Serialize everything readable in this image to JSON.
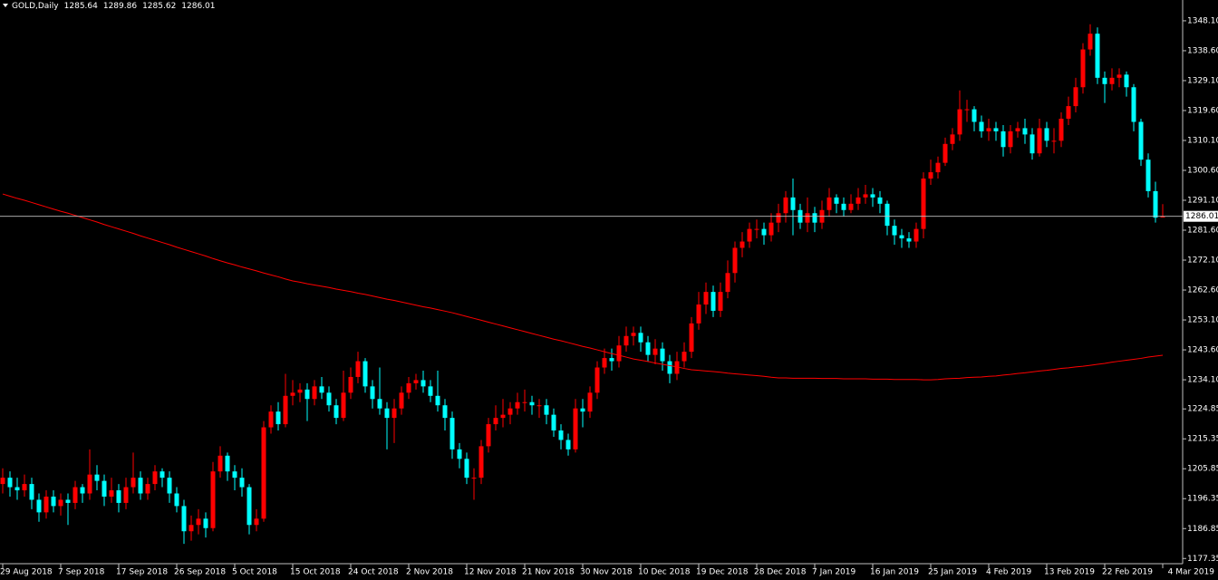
{
  "chart_data": {
    "type": "candlestick",
    "title": "GOLD,Daily",
    "up_color": "#ff0000",
    "down_color": "#00ffff",
    "categories": [
      "29 Aug 2018",
      null,
      null,
      null,
      null,
      null,
      null,
      null,
      "7 Sep 2018",
      null,
      null,
      null,
      null,
      null,
      null,
      null,
      "17 Sep 2018",
      null,
      null,
      null,
      null,
      null,
      null,
      null,
      "26 Sep 2018",
      null,
      null,
      null,
      null,
      null,
      null,
      null,
      "5 Oct 2018",
      null,
      null,
      null,
      null,
      null,
      null,
      null,
      "15 Oct 2018",
      null,
      null,
      null,
      null,
      null,
      null,
      null,
      "24 Oct 2018",
      null,
      null,
      null,
      null,
      null,
      null,
      null,
      "2 Nov 2018",
      null,
      null,
      null,
      null,
      null,
      null,
      null,
      "12 Nov 2018",
      null,
      null,
      null,
      null,
      null,
      null,
      null,
      "21 Nov 2018",
      null,
      null,
      null,
      null,
      null,
      null,
      null,
      "30 Nov 2018",
      null,
      null,
      null,
      null,
      null,
      null,
      null,
      "10 Dec 2018",
      null,
      null,
      null,
      null,
      null,
      null,
      null,
      "19 Dec 2018",
      null,
      null,
      null,
      null,
      null,
      null,
      null,
      "28 Dec 2018",
      null,
      null,
      null,
      null,
      null,
      null,
      null,
      "7 Jan 2019",
      null,
      null,
      null,
      null,
      null,
      null,
      null,
      "16 Jan 2019",
      null,
      null,
      null,
      null,
      null,
      null,
      null,
      "25 Jan 2019",
      null,
      null,
      null,
      null,
      null,
      null,
      null,
      "4 Feb 2019",
      null,
      null,
      null,
      null,
      null,
      null,
      null,
      "13 Feb 2019",
      null,
      null,
      null,
      null,
      null,
      null,
      null,
      "22 Feb 2019",
      null,
      null,
      null,
      null,
      null,
      null,
      null,
      "4 Mar 2019"
    ],
    "open": [
      1201,
      1203,
      1200,
      1199,
      1201,
      1196,
      1192,
      1197,
      1194,
      1196,
      1195,
      1200,
      1198,
      1204,
      1202,
      1197,
      1199,
      1195,
      1200,
      1203,
      1198,
      1201,
      1205,
      1203,
      1198,
      1194,
      1186,
      1188,
      1190,
      1187,
      1205,
      1210,
      1205,
      1203,
      1200,
      1188,
      1190,
      1219,
      1224,
      1220,
      1229,
      1230,
      1231,
      1228,
      1232,
      1230,
      1226,
      1222,
      1230,
      1235,
      1240,
      1232,
      1228,
      1225,
      1222,
      1225,
      1230,
      1233,
      1234,
      1232,
      1229,
      1226,
      1222,
      1212,
      1209,
      1203,
      1203,
      1213,
      1220,
      1222,
      1223,
      1225,
      1227,
      1227,
      1226,
      1226,
      1223,
      1218,
      1215,
      1212,
      1225,
      1224,
      1230,
      1238,
      1241,
      1240,
      1245,
      1248,
      1249,
      1246,
      1242,
      1244,
      1240,
      1236,
      1240,
      1243,
      1252,
      1258,
      1262,
      1256,
      1262,
      1268,
      1276,
      1278,
      1282,
      1282,
      1280,
      1284,
      1287,
      1292,
      1288,
      1284,
      1287,
      1284,
      1288,
      1292,
      1290,
      1288,
      1290,
      1292,
      1293,
      1292,
      1290,
      1283,
      1280,
      1279,
      1278,
      1282,
      1298,
      1300,
      1303,
      1309,
      1312,
      1320,
      1320,
      1316,
      1313,
      1314,
      1313,
      1308,
      1313,
      1314,
      1312,
      1306,
      1314,
      1310,
      1310,
      1317,
      1321,
      1327,
      1339,
      1344,
      1330,
      1328,
      1330,
      1331,
      1327,
      1316,
      1304,
      1294,
      1285.64
    ],
    "high": [
      1206,
      1205,
      1203,
      1204,
      1203,
      1198,
      1199,
      1199,
      1198,
      1198,
      1202,
      1201,
      1212,
      1207,
      1204,
      1203,
      1201,
      1203,
      1211,
      1205,
      1203,
      1207,
      1206,
      1205,
      1200,
      1196,
      1191,
      1193,
      1192,
      1208,
      1213,
      1211,
      1207,
      1206,
      1201,
      1193,
      1221,
      1226,
      1227,
      1236,
      1234,
      1233,
      1233,
      1234,
      1235,
      1232,
      1228,
      1237,
      1238,
      1243,
      1241,
      1234,
      1238,
      1227,
      1228,
      1232,
      1235,
      1236,
      1237,
      1234,
      1237,
      1228,
      1224,
      1214,
      1211,
      1206,
      1215,
      1222,
      1226,
      1228,
      1227,
      1230,
      1231,
      1229,
      1228,
      1228,
      1225,
      1220,
      1217,
      1228,
      1228,
      1232,
      1240,
      1244,
      1244,
      1248,
      1251,
      1251,
      1251,
      1248,
      1247,
      1246,
      1242,
      1243,
      1246,
      1254,
      1262,
      1265,
      1264,
      1265,
      1272,
      1278,
      1281,
      1284,
      1285,
      1284,
      1287,
      1290,
      1294,
      1298,
      1290,
      1292,
      1289,
      1291,
      1295,
      1293,
      1292,
      1293,
      1295,
      1296,
      1295,
      1294,
      1291,
      1285,
      1282,
      1281,
      1284,
      1300,
      1304,
      1305,
      1311,
      1314,
      1326,
      1323,
      1321,
      1318,
      1317,
      1316,
      1315,
      1315,
      1316,
      1317,
      1314,
      1317,
      1316,
      1314,
      1319,
      1324,
      1330,
      1341,
      1347,
      1346,
      1332,
      1333,
      1333,
      1332,
      1328,
      1317,
      1306,
      1297,
      1289.86
    ],
    "low": [
      1198,
      1197,
      1196,
      1197,
      1193,
      1189,
      1190,
      1192,
      1191,
      1188,
      1193,
      1195,
      1196,
      1199,
      1194,
      1195,
      1192,
      1193,
      1198,
      1196,
      1196,
      1199,
      1200,
      1195,
      1192,
      1182,
      1183,
      1185,
      1184,
      1186,
      1203,
      1202,
      1199,
      1197,
      1185,
      1186,
      1189,
      1217,
      1218,
      1219,
      1226,
      1227,
      1221,
      1226,
      1228,
      1224,
      1220,
      1221,
      1228,
      1233,
      1230,
      1225,
      1223,
      1212,
      1214,
      1223,
      1228,
      1231,
      1230,
      1227,
      1224,
      1218,
      1209,
      1206,
      1201,
      1196,
      1201,
      1211,
      1218,
      1219,
      1220,
      1223,
      1224,
      1223,
      1222,
      1220,
      1216,
      1212,
      1210,
      1211,
      1219,
      1222,
      1228,
      1236,
      1237,
      1238,
      1243,
      1245,
      1243,
      1240,
      1239,
      1237,
      1233,
      1234,
      1238,
      1241,
      1250,
      1255,
      1254,
      1254,
      1260,
      1265,
      1273,
      1276,
      1279,
      1277,
      1278,
      1281,
      1284,
      1280,
      1282,
      1281,
      1281,
      1282,
      1286,
      1287,
      1286,
      1287,
      1288,
      1290,
      1289,
      1287,
      1280,
      1277,
      1276,
      1276,
      1276,
      1279,
      1296,
      1298,
      1302,
      1307,
      1310,
      1316,
      1313,
      1311,
      1310,
      1310,
      1305,
      1306,
      1311,
      1309,
      1304,
      1305,
      1308,
      1306,
      1308,
      1315,
      1319,
      1325,
      1337,
      1328,
      1322,
      1326,
      1327,
      1324,
      1313,
      1302,
      1292,
      1284,
      1285.62
    ],
    "close": [
      1203,
      1200,
      1199,
      1201,
      1196,
      1192,
      1197,
      1194,
      1196,
      1195,
      1200,
      1198,
      1204,
      1202,
      1197,
      1199,
      1195,
      1200,
      1203,
      1198,
      1201,
      1205,
      1203,
      1198,
      1194,
      1186,
      1188,
      1190,
      1187,
      1205,
      1210,
      1205,
      1203,
      1200,
      1188,
      1190,
      1219,
      1224,
      1220,
      1229,
      1230,
      1231,
      1228,
      1232,
      1230,
      1226,
      1222,
      1230,
      1235,
      1240,
      1232,
      1228,
      1225,
      1222,
      1225,
      1230,
      1233,
      1234,
      1232,
      1229,
      1226,
      1222,
      1212,
      1209,
      1203,
      1203,
      1213,
      1220,
      1222,
      1223,
      1225,
      1227,
      1227,
      1226,
      1226,
      1223,
      1218,
      1215,
      1212,
      1225,
      1224,
      1230,
      1238,
      1241,
      1240,
      1245,
      1248,
      1249,
      1246,
      1242,
      1244,
      1240,
      1236,
      1240,
      1243,
      1252,
      1258,
      1262,
      1256,
      1262,
      1268,
      1276,
      1278,
      1282,
      1282,
      1280,
      1284,
      1287,
      1292,
      1288,
      1284,
      1287,
      1284,
      1288,
      1292,
      1290,
      1288,
      1290,
      1292,
      1293,
      1292,
      1290,
      1283,
      1280,
      1279,
      1278,
      1282,
      1298,
      1300,
      1303,
      1309,
      1312,
      1320,
      1320,
      1316,
      1313,
      1314,
      1313,
      1308,
      1313,
      1314,
      1312,
      1306,
      1314,
      1310,
      1310,
      1317,
      1321,
      1327,
      1339,
      1344,
      1330,
      1328,
      1330,
      1331,
      1327,
      1316,
      1304,
      1294,
      1285.6,
      1286.01
    ],
    "ma": {
      "color": "#ff0000",
      "values": [
        1293.1,
        1292.4,
        1291.7,
        1291.1,
        1290.4,
        1289.7,
        1289.0,
        1288.3,
        1287.6,
        1287.0,
        1286.3,
        1285.6,
        1284.9,
        1284.2,
        1283.4,
        1282.7,
        1282.0,
        1281.3,
        1280.6,
        1279.8,
        1279.1,
        1278.4,
        1277.7,
        1277.0,
        1276.2,
        1275.5,
        1274.8,
        1274.1,
        1273.4,
        1272.6,
        1271.9,
        1271.2,
        1270.6,
        1269.9,
        1269.3,
        1268.7,
        1268.0,
        1267.4,
        1266.8,
        1266.1,
        1265.5,
        1265.1,
        1264.6,
        1264.2,
        1263.8,
        1263.4,
        1262.9,
        1262.5,
        1262.1,
        1261.6,
        1261.2,
        1260.7,
        1260.2,
        1259.7,
        1259.3,
        1258.8,
        1258.3,
        1257.8,
        1257.3,
        1256.9,
        1256.4,
        1255.9,
        1255.4,
        1254.8,
        1254.2,
        1253.6,
        1253.0,
        1252.4,
        1251.8,
        1251.2,
        1250.6,
        1250.0,
        1249.4,
        1248.8,
        1248.2,
        1247.6,
        1247.0,
        1246.5,
        1245.9,
        1245.3,
        1244.7,
        1244.2,
        1243.6,
        1243.0,
        1242.4,
        1241.9,
        1241.3,
        1240.7,
        1240.3,
        1239.9,
        1239.4,
        1239.0,
        1238.6,
        1238.2,
        1237.7,
        1237.3,
        1237.1,
        1236.9,
        1236.7,
        1236.5,
        1236.2,
        1236.0,
        1235.8,
        1235.6,
        1235.4,
        1235.2,
        1234.9,
        1234.7,
        1234.7,
        1234.6,
        1234.6,
        1234.6,
        1234.6,
        1234.5,
        1234.5,
        1234.5,
        1234.4,
        1234.4,
        1234.4,
        1234.4,
        1234.3,
        1234.3,
        1234.3,
        1234.2,
        1234.2,
        1234.2,
        1234.2,
        1234.1,
        1234.1,
        1234.2,
        1234.4,
        1234.5,
        1234.6,
        1234.8,
        1234.9,
        1235.0,
        1235.2,
        1235.3,
        1235.6,
        1235.8,
        1236.1,
        1236.3,
        1236.6,
        1236.9,
        1237.1,
        1237.4,
        1237.7,
        1237.9,
        1238.2,
        1238.4,
        1238.7,
        1239.0,
        1239.3,
        1239.7,
        1240.0,
        1240.3,
        1240.6,
        1240.9,
        1241.3,
        1241.6,
        1241.9
      ]
    },
    "ylim": [
      1175.7,
      1354.7
    ],
    "yticks": [
      {
        "value": 1348.1,
        "label": "1348.10"
      },
      {
        "value": 1338.6,
        "label": "1338.60"
      },
      {
        "value": 1329.1,
        "label": "1329.10"
      },
      {
        "value": 1319.6,
        "label": "1319.60"
      },
      {
        "value": 1310.1,
        "label": "1310.10"
      },
      {
        "value": 1300.6,
        "label": "1300.60"
      },
      {
        "value": 1291.1,
        "label": "1291.10"
      },
      {
        "value": 1281.6,
        "label": "1281.60"
      },
      {
        "value": 1272.1,
        "label": "1272.10"
      },
      {
        "value": 1262.6,
        "label": "1262.60"
      },
      {
        "value": 1253.1,
        "label": "1253.10"
      },
      {
        "value": 1243.6,
        "label": "1243.60"
      },
      {
        "value": 1234.1,
        "label": "1234.10"
      },
      1224.85,
      1215.35,
      1205.85,
      1196.35,
      1186.85,
      1177.35
    ]
  }
}
